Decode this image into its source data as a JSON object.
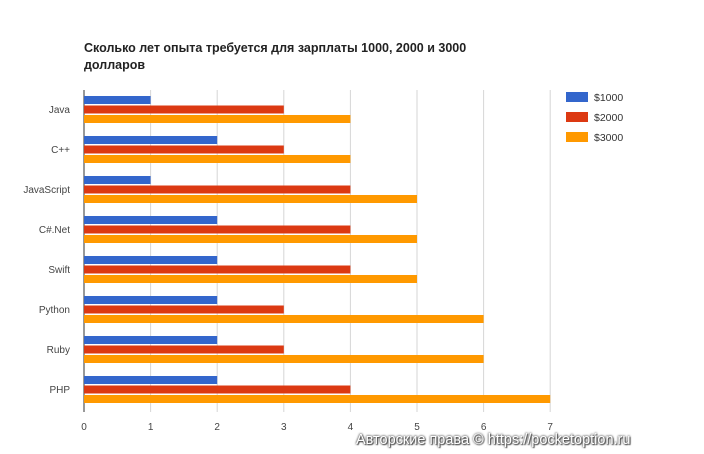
{
  "chart_data": {
    "type": "bar",
    "orientation": "horizontal",
    "title_lines": [
      "Сколько лет опыта требуется для зарплаты 1000, 2000 и 3000",
      "долларов"
    ],
    "categories": [
      "Java",
      "C++",
      "JavaScript",
      "C#.Net",
      "Swift",
      "Python",
      "Ruby",
      "PHP"
    ],
    "series": [
      {
        "name": "$1000",
        "color": "#3366cc",
        "values": [
          1,
          2,
          1,
          2,
          2,
          2,
          2,
          2
        ]
      },
      {
        "name": "$2000",
        "color": "#dc3912",
        "values": [
          3,
          3,
          4,
          4,
          4,
          3,
          3,
          4
        ]
      },
      {
        "name": "$3000",
        "color": "#ff9900",
        "values": [
          4,
          4,
          5,
          5,
          5,
          6,
          6,
          7
        ]
      }
    ],
    "x_ticks": [
      0,
      1,
      2,
      3,
      4,
      5,
      6,
      7
    ],
    "xlim": [
      0,
      7
    ],
    "grid": true,
    "legend_position": "top-right"
  },
  "watermark": "Авторские права © https://pocketoption.ru"
}
